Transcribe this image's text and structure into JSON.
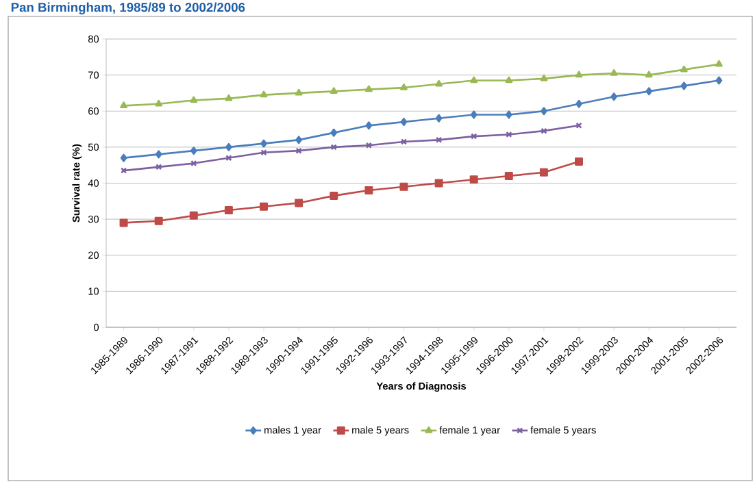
{
  "chart_data": {
    "type": "line",
    "title": "Pan Birmingham, 1985/89 to 2002/2006",
    "xlabel": "Years of Diagnosis",
    "ylabel": "Survival rate (%)",
    "categories": [
      "1985-1989",
      "1986-1990",
      "1987-1991",
      "1988-1992",
      "1989-1993",
      "1990-1994",
      "1991-1995",
      "1992-1996",
      "1993-1997",
      "1994-1998",
      "1995-1999",
      "1996-2000",
      "1997-2001",
      "1998-2002",
      "1999-2003",
      "2000-2004",
      "2001-2005",
      "2002-2006"
    ],
    "series": [
      {
        "name": "males 1 year",
        "color": "#4a7ebb",
        "marker": "diamond",
        "values": [
          47,
          48,
          49,
          50,
          51,
          52,
          54,
          56,
          57,
          58,
          59,
          59,
          60,
          62,
          64,
          65.5,
          67,
          68.5
        ]
      },
      {
        "name": "male 5 years",
        "color": "#be4b48",
        "marker": "square",
        "values": [
          29,
          29.5,
          31,
          32.5,
          33.5,
          34.5,
          36.5,
          38,
          39,
          40,
          41,
          42,
          43,
          46,
          null,
          null,
          null,
          null
        ]
      },
      {
        "name": "female 1 year",
        "color": "#98b954",
        "marker": "triangle",
        "values": [
          61.5,
          62,
          63,
          63.5,
          64.5,
          65,
          65.5,
          66,
          66.5,
          67.5,
          68.5,
          68.5,
          69,
          70,
          70.5,
          70,
          71.5,
          73
        ]
      },
      {
        "name": "female 5 years",
        "color": "#7d60a0",
        "marker": "cross",
        "values": [
          43.5,
          44.5,
          45.5,
          47,
          48.5,
          49,
          50,
          50.5,
          51.5,
          52,
          53,
          53.5,
          54.5,
          56,
          null,
          null,
          null,
          null
        ]
      }
    ],
    "ylim": [
      0,
      80
    ],
    "yticks": [
      0,
      10,
      20,
      30,
      40,
      50,
      60,
      70,
      80
    ],
    "grid": "y",
    "legend": "bottom"
  }
}
